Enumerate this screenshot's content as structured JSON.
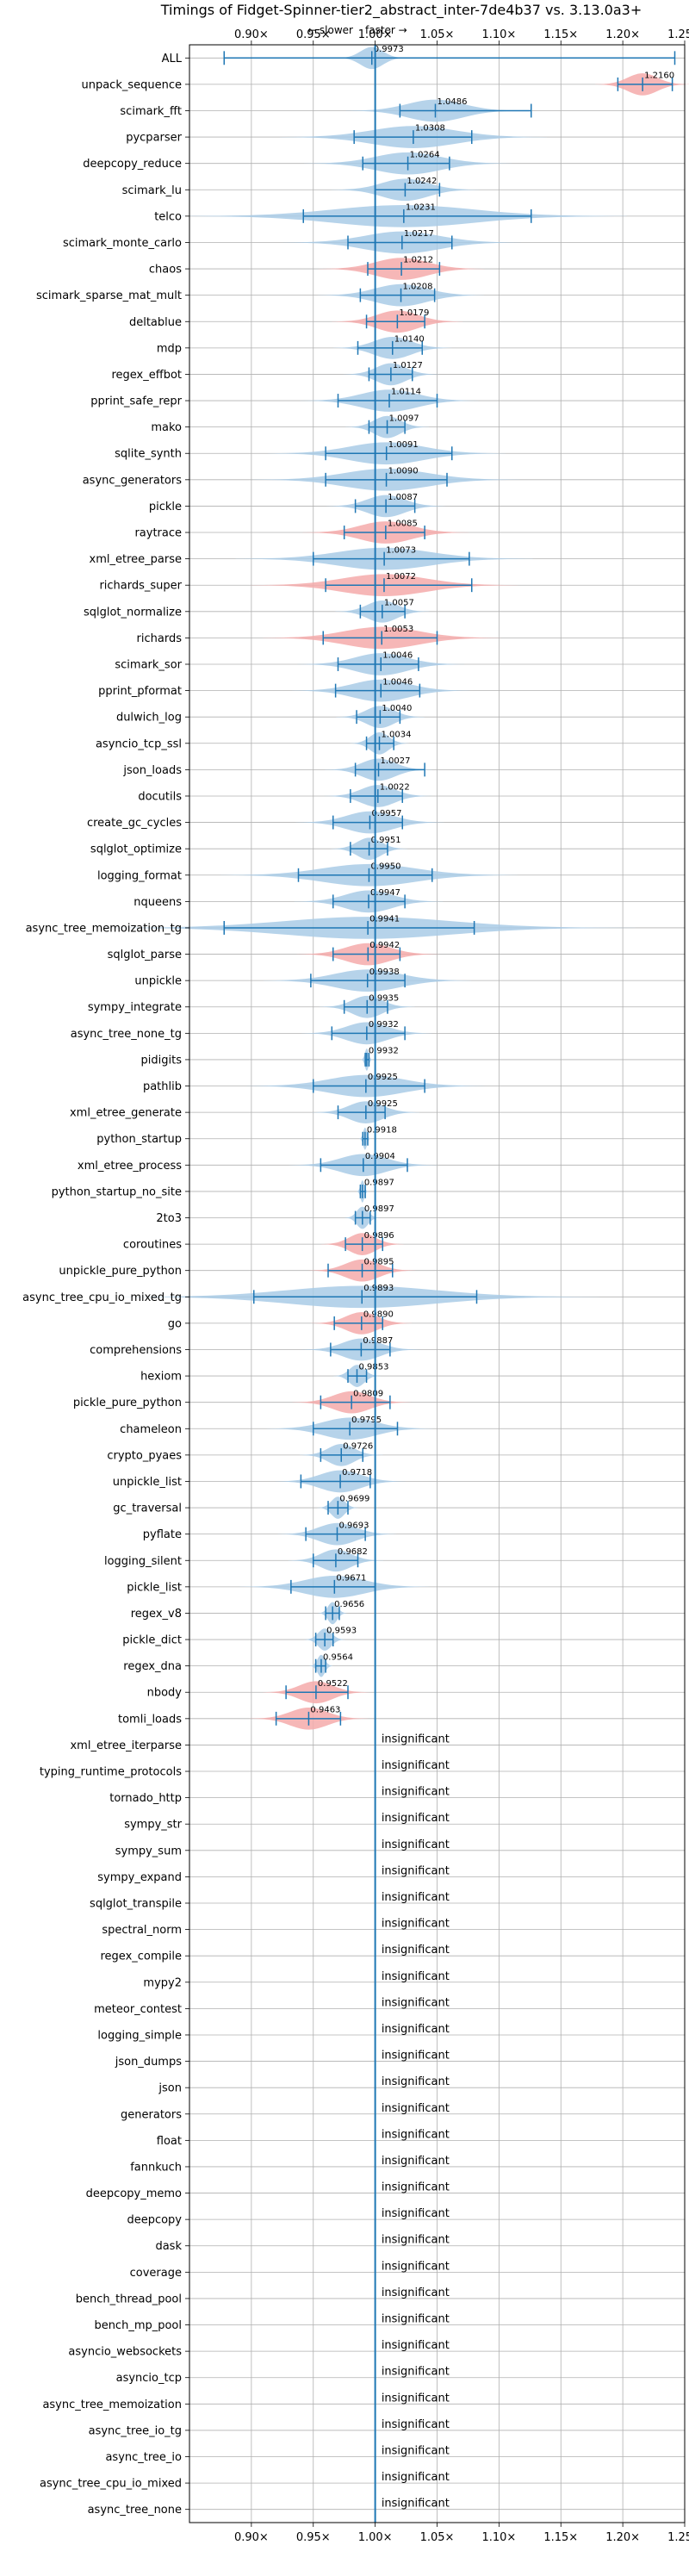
{
  "chart_data": {
    "type": "violin",
    "orientation": "horizontal",
    "title": "Timings of Fidget-Spinner-tier2_abstract_inter-7de4b37 vs. 3.13.0a3+",
    "direction_labels": {
      "slower": "← slower",
      "faster": "faster →"
    },
    "xlim": [
      0.85,
      1.25
    ],
    "xticks": [
      0.9,
      0.95,
      1.0,
      1.05,
      1.1,
      1.15,
      1.2,
      1.25
    ],
    "xtick_labels": [
      "0.90×",
      "0.95×",
      "1.00×",
      "1.05×",
      "1.10×",
      "1.15×",
      "1.20×",
      "1.25×"
    ],
    "reference_line": 1.0,
    "grid": true,
    "colors": {
      "faster": "#a9cbe6",
      "slower": "#f5aaaa",
      "line": "#1f77b4",
      "grid": "#b0b0b0"
    },
    "insignificant_label": "insignificant",
    "benchmarks": [
      {
        "name": "ALL",
        "mean": 0.9973,
        "min": 0.878,
        "max": 1.242,
        "spread": 0.012,
        "shown": "0.9973",
        "slower": false,
        "significant": true
      },
      {
        "name": "unpack_sequence",
        "mean": 1.216,
        "min": 1.196,
        "max": 1.24,
        "spread": 0.016,
        "shown": "1.2160",
        "slower": true,
        "significant": true
      },
      {
        "name": "scimark_fft",
        "mean": 1.0486,
        "min": 1.02,
        "max": 1.126,
        "spread": 0.03,
        "shown": "1.0486",
        "slower": false,
        "significant": true
      },
      {
        "name": "pycparser",
        "mean": 1.0308,
        "min": 0.983,
        "max": 1.078,
        "spread": 0.045,
        "shown": "1.0308",
        "slower": false,
        "significant": true
      },
      {
        "name": "deepcopy_reduce",
        "mean": 1.0264,
        "min": 0.99,
        "max": 1.06,
        "spread": 0.035,
        "shown": "1.0264",
        "slower": false,
        "significant": true
      },
      {
        "name": "scimark_lu",
        "mean": 1.0242,
        "min": 1.0,
        "max": 1.052,
        "spread": 0.025,
        "shown": "1.0242",
        "slower": false,
        "significant": true
      },
      {
        "name": "telco",
        "mean": 1.0231,
        "min": 0.942,
        "max": 1.126,
        "spread": 0.075,
        "shown": "1.0231",
        "slower": false,
        "significant": true
      },
      {
        "name": "scimark_monte_carlo",
        "mean": 1.0217,
        "min": 0.978,
        "max": 1.062,
        "spread": 0.04,
        "shown": "1.0217",
        "slower": false,
        "significant": true
      },
      {
        "name": "chaos",
        "mean": 1.0212,
        "min": 0.994,
        "max": 1.052,
        "spread": 0.028,
        "shown": "1.0212",
        "slower": true,
        "significant": true
      },
      {
        "name": "scimark_sparse_mat_mult",
        "mean": 1.0208,
        "min": 0.988,
        "max": 1.048,
        "spread": 0.028,
        "shown": "1.0208",
        "slower": false,
        "significant": true
      },
      {
        "name": "deltablue",
        "mean": 1.0179,
        "min": 0.993,
        "max": 1.04,
        "spread": 0.022,
        "shown": "1.0179",
        "slower": true,
        "significant": true
      },
      {
        "name": "mdp",
        "mean": 1.014,
        "min": 0.986,
        "max": 1.038,
        "spread": 0.02,
        "shown": "1.0140",
        "slower": false,
        "significant": true
      },
      {
        "name": "regex_effbot",
        "mean": 1.0127,
        "min": 0.995,
        "max": 1.03,
        "spread": 0.016,
        "shown": "1.0127",
        "slower": false,
        "significant": true
      },
      {
        "name": "pprint_safe_repr",
        "mean": 1.0114,
        "min": 0.97,
        "max": 1.05,
        "spread": 0.03,
        "shown": "1.0114",
        "slower": false,
        "significant": true
      },
      {
        "name": "mako",
        "mean": 1.0097,
        "min": 0.995,
        "max": 1.024,
        "spread": 0.014,
        "shown": "1.0097",
        "slower": false,
        "significant": true
      },
      {
        "name": "sqlite_synth",
        "mean": 1.0091,
        "min": 0.96,
        "max": 1.062,
        "spread": 0.04,
        "shown": "1.0091",
        "slower": false,
        "significant": true
      },
      {
        "name": "async_generators",
        "mean": 1.009,
        "min": 0.96,
        "max": 1.058,
        "spread": 0.045,
        "shown": "1.0090",
        "slower": false,
        "significant": true
      },
      {
        "name": "pickle",
        "mean": 1.0087,
        "min": 0.984,
        "max": 1.032,
        "spread": 0.02,
        "shown": "1.0087",
        "slower": false,
        "significant": true
      },
      {
        "name": "raytrace",
        "mean": 1.0085,
        "min": 0.975,
        "max": 1.04,
        "spread": 0.028,
        "shown": "1.0085",
        "slower": true,
        "significant": true
      },
      {
        "name": "xml_etree_parse",
        "mean": 1.0073,
        "min": 0.95,
        "max": 1.076,
        "spread": 0.05,
        "shown": "1.0073",
        "slower": false,
        "significant": true
      },
      {
        "name": "richards_super",
        "mean": 1.0072,
        "min": 0.96,
        "max": 1.078,
        "spread": 0.045,
        "shown": "1.0072",
        "slower": true,
        "significant": true
      },
      {
        "name": "sqlglot_normalize",
        "mean": 1.0057,
        "min": 0.988,
        "max": 1.024,
        "spread": 0.016,
        "shown": "1.0057",
        "slower": false,
        "significant": true
      },
      {
        "name": "richards",
        "mean": 1.0053,
        "min": 0.958,
        "max": 1.05,
        "spread": 0.04,
        "shown": "1.0053",
        "slower": true,
        "significant": true
      },
      {
        "name": "scimark_sor",
        "mean": 1.0046,
        "min": 0.97,
        "max": 1.035,
        "spread": 0.028,
        "shown": "1.0046",
        "slower": false,
        "significant": true
      },
      {
        "name": "pprint_pformat",
        "mean": 1.0046,
        "min": 0.968,
        "max": 1.036,
        "spread": 0.03,
        "shown": "1.0046",
        "slower": false,
        "significant": true
      },
      {
        "name": "dulwich_log",
        "mean": 1.004,
        "min": 0.985,
        "max": 1.02,
        "spread": 0.015,
        "shown": "1.0040",
        "slower": false,
        "significant": true
      },
      {
        "name": "asyncio_tcp_ssl",
        "mean": 1.0034,
        "min": 0.993,
        "max": 1.015,
        "spread": 0.01,
        "shown": "1.0034",
        "slower": false,
        "significant": true
      },
      {
        "name": "json_loads",
        "mean": 1.0027,
        "min": 0.984,
        "max": 1.04,
        "spread": 0.018,
        "shown": "1.0027",
        "slower": false,
        "significant": true
      },
      {
        "name": "docutils",
        "mean": 1.0022,
        "min": 0.98,
        "max": 1.022,
        "spread": 0.018,
        "shown": "1.0022",
        "slower": false,
        "significant": true
      },
      {
        "name": "create_gc_cycles",
        "mean": 0.9957,
        "min": 0.966,
        "max": 1.022,
        "spread": 0.025,
        "shown": "0.9957",
        "slower": false,
        "significant": true
      },
      {
        "name": "sqlglot_optimize",
        "mean": 0.9951,
        "min": 0.98,
        "max": 1.01,
        "spread": 0.013,
        "shown": "0.9951",
        "slower": false,
        "significant": true
      },
      {
        "name": "logging_format",
        "mean": 0.995,
        "min": 0.938,
        "max": 1.046,
        "spread": 0.05,
        "shown": "0.9950",
        "slower": false,
        "significant": true
      },
      {
        "name": "nqueens",
        "mean": 0.9947,
        "min": 0.966,
        "max": 1.024,
        "spread": 0.025,
        "shown": "0.9947",
        "slower": false,
        "significant": true
      },
      {
        "name": "async_tree_memoization_tg",
        "mean": 0.9941,
        "min": 0.878,
        "max": 1.08,
        "spread": 0.09,
        "shown": "0.9941",
        "slower": false,
        "significant": true
      },
      {
        "name": "sqlglot_parse",
        "mean": 0.9942,
        "min": 0.966,
        "max": 1.02,
        "spread": 0.024,
        "shown": "0.9942",
        "slower": true,
        "significant": true
      },
      {
        "name": "unpickle",
        "mean": 0.9938,
        "min": 0.948,
        "max": 1.024,
        "spread": 0.035,
        "shown": "0.9938",
        "slower": false,
        "significant": true
      },
      {
        "name": "sympy_integrate",
        "mean": 0.9935,
        "min": 0.975,
        "max": 1.01,
        "spread": 0.016,
        "shown": "0.9935",
        "slower": false,
        "significant": true
      },
      {
        "name": "async_tree_none_tg",
        "mean": 0.9932,
        "min": 0.965,
        "max": 1.024,
        "spread": 0.022,
        "shown": "0.9932",
        "slower": false,
        "significant": true
      },
      {
        "name": "pidigits",
        "mean": 0.9932,
        "min": 0.992,
        "max": 0.995,
        "spread": 0.002,
        "shown": "0.9932",
        "slower": false,
        "significant": true
      },
      {
        "name": "pathlib",
        "mean": 0.9925,
        "min": 0.95,
        "max": 1.04,
        "spread": 0.04,
        "shown": "0.9925",
        "slower": false,
        "significant": true
      },
      {
        "name": "xml_etree_generate",
        "mean": 0.9925,
        "min": 0.97,
        "max": 1.008,
        "spread": 0.018,
        "shown": "0.9925",
        "slower": false,
        "significant": true
      },
      {
        "name": "python_startup",
        "mean": 0.9918,
        "min": 0.99,
        "max": 0.994,
        "spread": 0.002,
        "shown": "0.9918",
        "slower": false,
        "significant": true
      },
      {
        "name": "xml_etree_process",
        "mean": 0.9904,
        "min": 0.956,
        "max": 1.026,
        "spread": 0.025,
        "shown": "0.9904",
        "slower": false,
        "significant": true
      },
      {
        "name": "python_startup_no_site",
        "mean": 0.9897,
        "min": 0.988,
        "max": 0.992,
        "spread": 0.002,
        "shown": "0.9897",
        "slower": false,
        "significant": true
      },
      {
        "name": "2to3",
        "mean": 0.9897,
        "min": 0.984,
        "max": 0.996,
        "spread": 0.006,
        "shown": "0.9897",
        "slower": false,
        "significant": true
      },
      {
        "name": "coroutines",
        "mean": 0.9896,
        "min": 0.976,
        "max": 1.006,
        "spread": 0.014,
        "shown": "0.9896",
        "slower": true,
        "significant": true
      },
      {
        "name": "unpickle_pure_python",
        "mean": 0.9895,
        "min": 0.962,
        "max": 1.014,
        "spread": 0.018,
        "shown": "0.9895",
        "slower": true,
        "significant": true
      },
      {
        "name": "async_tree_cpu_io_mixed_tg",
        "mean": 0.9893,
        "min": 0.902,
        "max": 1.082,
        "spread": 0.08,
        "shown": "0.9893",
        "slower": false,
        "significant": true
      },
      {
        "name": "go",
        "mean": 0.989,
        "min": 0.967,
        "max": 1.006,
        "spread": 0.017,
        "shown": "0.9890",
        "slower": true,
        "significant": true
      },
      {
        "name": "comprehensions",
        "mean": 0.9887,
        "min": 0.964,
        "max": 1.012,
        "spread": 0.02,
        "shown": "0.9887",
        "slower": false,
        "significant": true
      },
      {
        "name": "hexiom",
        "mean": 0.9853,
        "min": 0.978,
        "max": 0.993,
        "spread": 0.008,
        "shown": "0.9853",
        "slower": false,
        "significant": true
      },
      {
        "name": "pickle_pure_python",
        "mean": 0.9809,
        "min": 0.956,
        "max": 1.012,
        "spread": 0.02,
        "shown": "0.9809",
        "slower": true,
        "significant": true
      },
      {
        "name": "chameleon",
        "mean": 0.9795,
        "min": 0.95,
        "max": 1.018,
        "spread": 0.028,
        "shown": "0.9795",
        "slower": false,
        "significant": true
      },
      {
        "name": "crypto_pyaes",
        "mean": 0.9726,
        "min": 0.956,
        "max": 0.99,
        "spread": 0.014,
        "shown": "0.9726",
        "slower": false,
        "significant": true
      },
      {
        "name": "unpickle_list",
        "mean": 0.9718,
        "min": 0.94,
        "max": 0.996,
        "spread": 0.022,
        "shown": "0.9718",
        "slower": false,
        "significant": true
      },
      {
        "name": "gc_traversal",
        "mean": 0.9699,
        "min": 0.962,
        "max": 0.978,
        "spread": 0.007,
        "shown": "0.9699",
        "slower": false,
        "significant": true
      },
      {
        "name": "pyflate",
        "mean": 0.9693,
        "min": 0.944,
        "max": 0.992,
        "spread": 0.02,
        "shown": "0.9693",
        "slower": false,
        "significant": true
      },
      {
        "name": "logging_silent",
        "mean": 0.9682,
        "min": 0.95,
        "max": 0.986,
        "spread": 0.016,
        "shown": "0.9682",
        "slower": false,
        "significant": true
      },
      {
        "name": "pickle_list",
        "mean": 0.9671,
        "min": 0.932,
        "max": 1.0,
        "spread": 0.032,
        "shown": "0.9671",
        "slower": false,
        "significant": true
      },
      {
        "name": "regex_v8",
        "mean": 0.9656,
        "min": 0.96,
        "max": 0.971,
        "spread": 0.005,
        "shown": "0.9656",
        "slower": false,
        "significant": true
      },
      {
        "name": "pickle_dict",
        "mean": 0.9593,
        "min": 0.952,
        "max": 0.966,
        "spread": 0.007,
        "shown": "0.9593",
        "slower": false,
        "significant": true
      },
      {
        "name": "regex_dna",
        "mean": 0.9564,
        "min": 0.952,
        "max": 0.96,
        "spread": 0.004,
        "shown": "0.9564",
        "slower": false,
        "significant": true
      },
      {
        "name": "nbody",
        "mean": 0.9522,
        "min": 0.928,
        "max": 0.978,
        "spread": 0.018,
        "shown": "0.9522",
        "slower": true,
        "significant": true
      },
      {
        "name": "tomli_loads",
        "mean": 0.9463,
        "min": 0.92,
        "max": 0.972,
        "spread": 0.02,
        "shown": "0.9463",
        "slower": true,
        "significant": true
      },
      {
        "name": "xml_etree_iterparse",
        "significant": false
      },
      {
        "name": "typing_runtime_protocols",
        "significant": false
      },
      {
        "name": "tornado_http",
        "significant": false
      },
      {
        "name": "sympy_str",
        "significant": false
      },
      {
        "name": "sympy_sum",
        "significant": false
      },
      {
        "name": "sympy_expand",
        "significant": false
      },
      {
        "name": "sqlglot_transpile",
        "significant": false
      },
      {
        "name": "spectral_norm",
        "significant": false
      },
      {
        "name": "regex_compile",
        "significant": false
      },
      {
        "name": "mypy2",
        "significant": false
      },
      {
        "name": "meteor_contest",
        "significant": false
      },
      {
        "name": "logging_simple",
        "significant": false
      },
      {
        "name": "json_dumps",
        "significant": false
      },
      {
        "name": "json",
        "significant": false
      },
      {
        "name": "generators",
        "significant": false
      },
      {
        "name": "float",
        "significant": false
      },
      {
        "name": "fannkuch",
        "significant": false
      },
      {
        "name": "deepcopy_memo",
        "significant": false
      },
      {
        "name": "deepcopy",
        "significant": false
      },
      {
        "name": "dask",
        "significant": false
      },
      {
        "name": "coverage",
        "significant": false
      },
      {
        "name": "bench_thread_pool",
        "significant": false
      },
      {
        "name": "bench_mp_pool",
        "significant": false
      },
      {
        "name": "asyncio_websockets",
        "significant": false
      },
      {
        "name": "asyncio_tcp",
        "significant": false
      },
      {
        "name": "async_tree_memoization",
        "significant": false
      },
      {
        "name": "async_tree_io_tg",
        "significant": false
      },
      {
        "name": "async_tree_io",
        "significant": false
      },
      {
        "name": "async_tree_cpu_io_mixed",
        "significant": false
      },
      {
        "name": "async_tree_none",
        "significant": false
      }
    ]
  }
}
